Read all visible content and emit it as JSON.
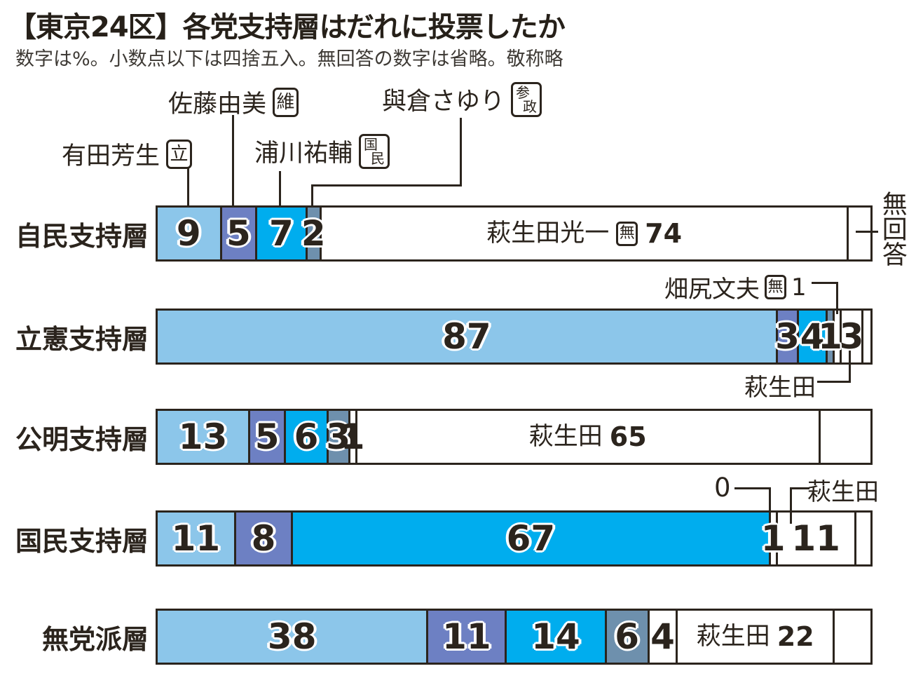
{
  "title": "【東京24区】各党支持層はだれに投票したか",
  "subtitle": "数字は%。小数点以下は四捨五入。無回答の数字は省略。敬称略",
  "colors": {
    "ink": "#2b241d",
    "arita": "#8cc6ea",
    "sato": "#6d80c3",
    "urakawa": "#00adee",
    "yokura": "#6e90ad",
    "white": "#ffffff"
  },
  "legend": {
    "arita": {
      "name": "有田芳生",
      "badge": "立"
    },
    "sato": {
      "name": "佐藤由美",
      "badge": "維"
    },
    "urakawa": {
      "name": "浦川祐輔",
      "badge_chars": [
        "国",
        "民"
      ]
    },
    "yokura": {
      "name": "與倉さゆり",
      "badge_chars": [
        "参",
        "政"
      ]
    }
  },
  "annotations": {
    "hatajiri": {
      "name": "畑尻文夫",
      "badge": "無",
      "value": "1"
    },
    "hagiuda_below_bar2": "萩生田",
    "hagiuda_above_bar4": "萩生田",
    "zero_above_bar4": "0",
    "no_answer_side": "無回答"
  },
  "chart_data": {
    "type": "bar",
    "stacked": true,
    "orientation": "horizontal",
    "unit": "%",
    "x_max": 100,
    "title": "【東京24区】各党支持層はだれに投票したか",
    "note": "数字は%。小数点以下は四捨五入。無回答の数字は省略。敬称略",
    "categories": [
      "自民支持層",
      "立憲支持層",
      "公明支持層",
      "国民支持層",
      "無党派層"
    ],
    "series": [
      {
        "name": "有田芳生(立)",
        "values": [
          9,
          87,
          13,
          11,
          38
        ]
      },
      {
        "name": "佐藤由美(維)",
        "values": [
          5,
          3,
          5,
          8,
          11
        ]
      },
      {
        "name": "浦川祐輔(国民)",
        "values": [
          7,
          4,
          6,
          67,
          14
        ]
      },
      {
        "name": "與倉さゆり(参政)",
        "values": [
          2,
          1,
          3,
          0,
          6
        ]
      },
      {
        "name": "畑尻文夫(無)",
        "values": [
          null,
          1,
          1,
          1,
          4
        ]
      },
      {
        "name": "萩生田光一(無)",
        "values": [
          74,
          3,
          65,
          11,
          22
        ]
      },
      {
        "name": "無回答(数字省略)",
        "values": [
          3,
          1,
          7,
          2,
          5
        ]
      }
    ],
    "bars": [
      {
        "category": "自民支持層",
        "segments": [
          {
            "key": "arita",
            "candidate": "有田芳生",
            "color": "arita",
            "value": 9,
            "num": "9",
            "halo": true
          },
          {
            "key": "sato",
            "candidate": "佐藤由美",
            "color": "sato",
            "value": 5,
            "num": "5",
            "halo": true
          },
          {
            "key": "urakawa",
            "candidate": "浦川祐輔",
            "color": "urakawa",
            "value": 7,
            "num": "7",
            "halo": true
          },
          {
            "key": "yokura",
            "candidate": "與倉さゆり",
            "color": "yokura",
            "value": 2,
            "num": "2",
            "halo": true
          },
          {
            "key": "hagiuda",
            "candidate": "萩生田光一",
            "color": "white",
            "value": 74,
            "num": "74",
            "name_label": "萩生田光一",
            "badge_label": "無"
          },
          {
            "key": "no-answer",
            "candidate": "無回答",
            "color": "white",
            "value": 3
          }
        ]
      },
      {
        "category": "立憲支持層",
        "segments": [
          {
            "key": "arita",
            "candidate": "有田芳生",
            "color": "arita",
            "value": 87,
            "num": "87",
            "halo": true
          },
          {
            "key": "sato",
            "candidate": "佐藤由美",
            "color": "sato",
            "value": 3,
            "num": "3",
            "halo": true
          },
          {
            "key": "urakawa",
            "candidate": "浦川祐輔",
            "color": "urakawa",
            "value": 4,
            "num": "4",
            "halo": true
          },
          {
            "key": "yokura",
            "candidate": "與倉さゆり",
            "color": "yokura",
            "value": 1,
            "num": "1",
            "halo": true
          },
          {
            "key": "hatajiri",
            "candidate": "畑尻文夫",
            "color": "white",
            "value": 1
          },
          {
            "key": "hagiuda",
            "candidate": "萩生田光一",
            "color": "white",
            "value": 3,
            "num": "3"
          },
          {
            "key": "no-answer",
            "candidate": "無回答",
            "color": "white",
            "value": 1
          }
        ]
      },
      {
        "category": "公明支持層",
        "segments": [
          {
            "key": "arita",
            "candidate": "有田芳生",
            "color": "arita",
            "value": 13,
            "num": "13",
            "halo": true
          },
          {
            "key": "sato",
            "candidate": "佐藤由美",
            "color": "sato",
            "value": 5,
            "num": "5",
            "halo": true
          },
          {
            "key": "urakawa",
            "candidate": "浦川祐輔",
            "color": "urakawa",
            "value": 6,
            "num": "6",
            "halo": true
          },
          {
            "key": "yokura",
            "candidate": "與倉さゆり",
            "color": "yokura",
            "value": 3,
            "num": "3",
            "halo": true
          },
          {
            "key": "hatajiri",
            "candidate": "畑尻文夫",
            "color": "white",
            "value": 1,
            "num": "1"
          },
          {
            "key": "hagiuda",
            "candidate": "萩生田光一",
            "color": "white",
            "value": 65,
            "num": "65",
            "name_label": "萩生田"
          },
          {
            "key": "no-answer",
            "candidate": "無回答",
            "color": "white",
            "value": 7
          }
        ]
      },
      {
        "category": "国民支持層",
        "segments": [
          {
            "key": "arita",
            "candidate": "有田芳生",
            "color": "arita",
            "value": 11,
            "num": "11",
            "halo": true
          },
          {
            "key": "sato",
            "candidate": "佐藤由美",
            "color": "sato",
            "value": 8,
            "num": "8",
            "halo": true
          },
          {
            "key": "urakawa",
            "candidate": "浦川祐輔",
            "color": "urakawa",
            "value": 67,
            "num": "67",
            "halo": true
          },
          {
            "key": "yokura",
            "candidate": "與倉さゆり",
            "color": "yokura",
            "value": 0
          },
          {
            "key": "hatajiri",
            "candidate": "畑尻文夫",
            "color": "white",
            "value": 1,
            "num": "1",
            "halo": true
          },
          {
            "key": "hagiuda",
            "candidate": "萩生田光一",
            "color": "white",
            "value": 11,
            "num": "11"
          },
          {
            "key": "no-answer",
            "candidate": "無回答",
            "color": "white",
            "value": 2
          }
        ]
      },
      {
        "category": "無党派層",
        "segments": [
          {
            "key": "arita",
            "candidate": "有田芳生",
            "color": "arita",
            "value": 38,
            "num": "38",
            "halo": true
          },
          {
            "key": "sato",
            "candidate": "佐藤由美",
            "color": "sato",
            "value": 11,
            "num": "11",
            "halo": true
          },
          {
            "key": "urakawa",
            "candidate": "浦川祐輔",
            "color": "urakawa",
            "value": 14,
            "num": "14",
            "halo": true
          },
          {
            "key": "yokura",
            "candidate": "與倉さゆり",
            "color": "yokura",
            "value": 6,
            "num": "6",
            "halo": true
          },
          {
            "key": "hatajiri",
            "candidate": "畑尻文夫",
            "color": "white",
            "value": 4,
            "num": "4"
          },
          {
            "key": "hagiuda",
            "candidate": "萩生田光一",
            "color": "white",
            "value": 22,
            "num": "22",
            "name_label": "萩生田"
          },
          {
            "key": "no-answer",
            "candidate": "無回答",
            "color": "white",
            "value": 5
          }
        ]
      }
    ]
  }
}
